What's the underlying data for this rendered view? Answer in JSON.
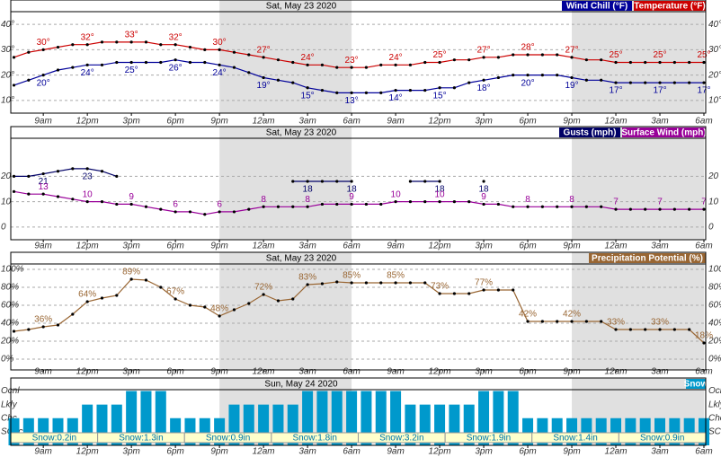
{
  "chart_data": [
    {
      "type": "line",
      "date": "Sat, May 23 2020",
      "categories": [
        null,
        null,
        "9am",
        null,
        null,
        "12pm",
        null,
        null,
        "3pm",
        null,
        null,
        "6pm",
        null,
        null,
        "9pm",
        null,
        null,
        "12am",
        null,
        null,
        "3am",
        null,
        null,
        "6am",
        null,
        null,
        "9am",
        null,
        null,
        "12pm",
        null,
        null,
        "3pm",
        null,
        null,
        "6pm",
        null,
        null,
        "9pm",
        null,
        null,
        "12am",
        null,
        null,
        "3am",
        null,
        null,
        "6am"
      ],
      "ylim": [
        5,
        45
      ],
      "yticks": [
        {
          "value": 10,
          "label": "10°"
        },
        {
          "value": 20,
          "label": "20°"
        },
        {
          "value": 30,
          "label": "30°"
        },
        {
          "value": 40,
          "label": "40°"
        }
      ],
      "grid": true,
      "series": [
        {
          "name": "Wind Chill (°F)",
          "color": "#000099",
          "values": [
            16,
            18,
            20,
            22,
            23,
            24,
            24,
            25,
            25,
            25,
            25,
            26,
            25,
            25,
            24,
            23,
            21,
            19,
            18,
            17,
            15,
            14,
            13,
            13,
            13,
            13,
            14,
            14,
            14,
            15,
            15,
            17,
            18,
            19,
            20,
            20,
            20,
            20,
            19,
            18,
            18,
            17,
            17,
            17,
            17,
            17,
            17,
            17
          ],
          "value_labels": [
            null,
            null,
            "20°",
            null,
            null,
            "24°",
            null,
            null,
            "25°",
            null,
            null,
            "26°",
            null,
            null,
            "24°",
            null,
            null,
            "19°",
            null,
            null,
            "15°",
            null,
            null,
            "13°",
            null,
            null,
            "14°",
            null,
            null,
            "15°",
            null,
            null,
            "18°",
            null,
            null,
            "20°",
            null,
            null,
            "19°",
            null,
            null,
            "17°",
            null,
            null,
            "17°",
            null,
            null,
            "17°"
          ]
        },
        {
          "name": "Temperature (°F)",
          "color": "#cc0000",
          "values": [
            27,
            29,
            30,
            31,
            32,
            32,
            33,
            33,
            33,
            33,
            32,
            32,
            31,
            30,
            30,
            29,
            28,
            27,
            26,
            25,
            24,
            24,
            23,
            23,
            23,
            24,
            24,
            24,
            25,
            25,
            26,
            26,
            27,
            27,
            28,
            28,
            28,
            28,
            27,
            26,
            26,
            25,
            25,
            25,
            25,
            25,
            25,
            25
          ],
          "value_labels": [
            null,
            null,
            "30°",
            null,
            null,
            "32°",
            null,
            null,
            "33°",
            null,
            null,
            "32°",
            null,
            null,
            "30°",
            null,
            null,
            "27°",
            null,
            null,
            "24°",
            null,
            null,
            "23°",
            null,
            null,
            "24°",
            null,
            null,
            "25°",
            null,
            null,
            "27°",
            null,
            null,
            "28°",
            null,
            null,
            "27°",
            null,
            null,
            "25°",
            null,
            null,
            "25°",
            null,
            null,
            "25°"
          ]
        }
      ]
    },
    {
      "type": "line",
      "date": "Sat, May 23 2020",
      "categories": [
        null,
        null,
        "9am",
        null,
        null,
        "12pm",
        null,
        null,
        "3pm",
        null,
        null,
        "6pm",
        null,
        null,
        "9pm",
        null,
        null,
        "12am",
        null,
        null,
        "3am",
        null,
        null,
        "6am",
        null,
        null,
        "9am",
        null,
        null,
        "12pm",
        null,
        null,
        "3pm",
        null,
        null,
        "6pm",
        null,
        null,
        "9pm",
        null,
        null,
        "12am",
        null,
        null,
        "3am",
        null,
        null,
        "6am"
      ],
      "ylim": [
        -5,
        35
      ],
      "yticks": [
        0,
        10,
        20
      ],
      "grid": true,
      "series": [
        {
          "name": "Gusts (mph)",
          "color": "#000066",
          "values": [
            20,
            20,
            21,
            22,
            23,
            23,
            22,
            20,
            null,
            null,
            null,
            null,
            null,
            null,
            null,
            null,
            null,
            null,
            null,
            18,
            18,
            18,
            18,
            18,
            null,
            null,
            null,
            18,
            18,
            18,
            null,
            null,
            18,
            null,
            null,
            null,
            null,
            null,
            null,
            null,
            null,
            null,
            null,
            null,
            null,
            null,
            null,
            null
          ]
        },
        {
          "name": "Surface Wind (mph)",
          "color": "#990099",
          "values": [
            14,
            13,
            13,
            12,
            11,
            10,
            10,
            9,
            9,
            8,
            7,
            6,
            6,
            5,
            6,
            6,
            7,
            8,
            8,
            8,
            8,
            9,
            9,
            9,
            9,
            9,
            10,
            10,
            10,
            10,
            10,
            10,
            9,
            9,
            8,
            8,
            8,
            8,
            8,
            8,
            8,
            7,
            7,
            7,
            7,
            7,
            7,
            7
          ]
        }
      ]
    },
    {
      "type": "line",
      "date": "Sat, May 23 2020",
      "categories": [
        null,
        null,
        "9am",
        null,
        null,
        "12pm",
        null,
        null,
        "3pm",
        null,
        null,
        "6pm",
        null,
        null,
        "9pm",
        null,
        null,
        "12am",
        null,
        null,
        "3am",
        null,
        null,
        "6am",
        null,
        null,
        "9am",
        null,
        null,
        "12pm",
        null,
        null,
        "3pm",
        null,
        null,
        "6pm",
        null,
        null,
        "9pm",
        null,
        null,
        "12am",
        null,
        null,
        "3am",
        null,
        null,
        "6am"
      ],
      "ylim": [
        -12,
        106
      ],
      "yticks": [
        {
          "value": 0,
          "label": "0%"
        },
        {
          "value": 20,
          "label": "20%"
        },
        {
          "value": 40,
          "label": "40%"
        },
        {
          "value": 60,
          "label": "60%"
        },
        {
          "value": 80,
          "label": "80%"
        },
        {
          "value": 100,
          "label": "100%"
        }
      ],
      "grid": true,
      "series": [
        {
          "name": "Precipitation Potential (%)",
          "color": "#996633",
          "values": [
            31,
            33,
            36,
            38,
            50,
            64,
            68,
            71,
            89,
            88,
            80,
            67,
            60,
            58,
            48,
            55,
            62,
            72,
            65,
            67,
            83,
            84,
            86,
            85,
            85,
            85,
            85,
            85,
            85,
            73,
            73,
            73,
            77,
            77,
            77,
            42,
            42,
            42,
            42,
            42,
            42,
            33,
            33,
            33,
            33,
            33,
            33,
            18
          ],
          "value_labels": [
            null,
            null,
            "36%",
            null,
            null,
            "64%",
            null,
            null,
            "89%",
            null,
            null,
            "67%",
            null,
            null,
            "48%",
            null,
            null,
            "72%",
            null,
            null,
            "83%",
            null,
            null,
            "85%",
            null,
            null,
            "85%",
            null,
            null,
            "73%",
            null,
            null,
            "77%",
            null,
            null,
            "42%",
            null,
            null,
            "42%",
            null,
            null,
            "33%",
            null,
            null,
            "33%",
            null,
            null,
            "18%"
          ]
        }
      ]
    },
    {
      "type": "bar",
      "date": "Sun, May 24 2020",
      "categories": [
        null,
        null,
        "9am",
        null,
        null,
        "12pm",
        null,
        null,
        "3pm",
        null,
        null,
        "6pm",
        null,
        null,
        "9pm",
        null,
        null,
        "12am",
        null,
        null,
        "3am",
        null,
        null,
        "6am",
        null,
        null,
        "9am",
        null,
        null,
        "12pm",
        null,
        null,
        "3pm",
        null,
        null,
        "6pm",
        null,
        null,
        "9pm",
        null,
        null,
        "12am",
        null,
        null,
        "3am",
        null,
        null,
        "6am"
      ],
      "ylim": [
        0,
        4.1
      ],
      "yticks": [
        {
          "value": 1,
          "label": "SChc"
        },
        {
          "value": 2,
          "label": "Chc"
        },
        {
          "value": 3,
          "label": "Lkly"
        },
        {
          "value": 4,
          "label": "Ocnl"
        }
      ],
      "series": [
        {
          "name": "Snow",
          "color": "#0099cc",
          "values": [
            2,
            2,
            2,
            2,
            2,
            3,
            3,
            3,
            4,
            4,
            4,
            2,
            2,
            2,
            2,
            3,
            3,
            3,
            3,
            3,
            4,
            4,
            4,
            4,
            4,
            4,
            4,
            3,
            3,
            3,
            3,
            3,
            4,
            4,
            4,
            2,
            2,
            2,
            2,
            2,
            2,
            2,
            2,
            2,
            2,
            2,
            2,
            2
          ]
        }
      ],
      "amounts": [
        "Snow:0.2in",
        "Snow:1.3in",
        "Snow:0.9in",
        "Snow:1.8in",
        "Snow:3.2in",
        "Snow:1.9in",
        "Snow:1.4in",
        "Snow:0.9in"
      ]
    }
  ]
}
